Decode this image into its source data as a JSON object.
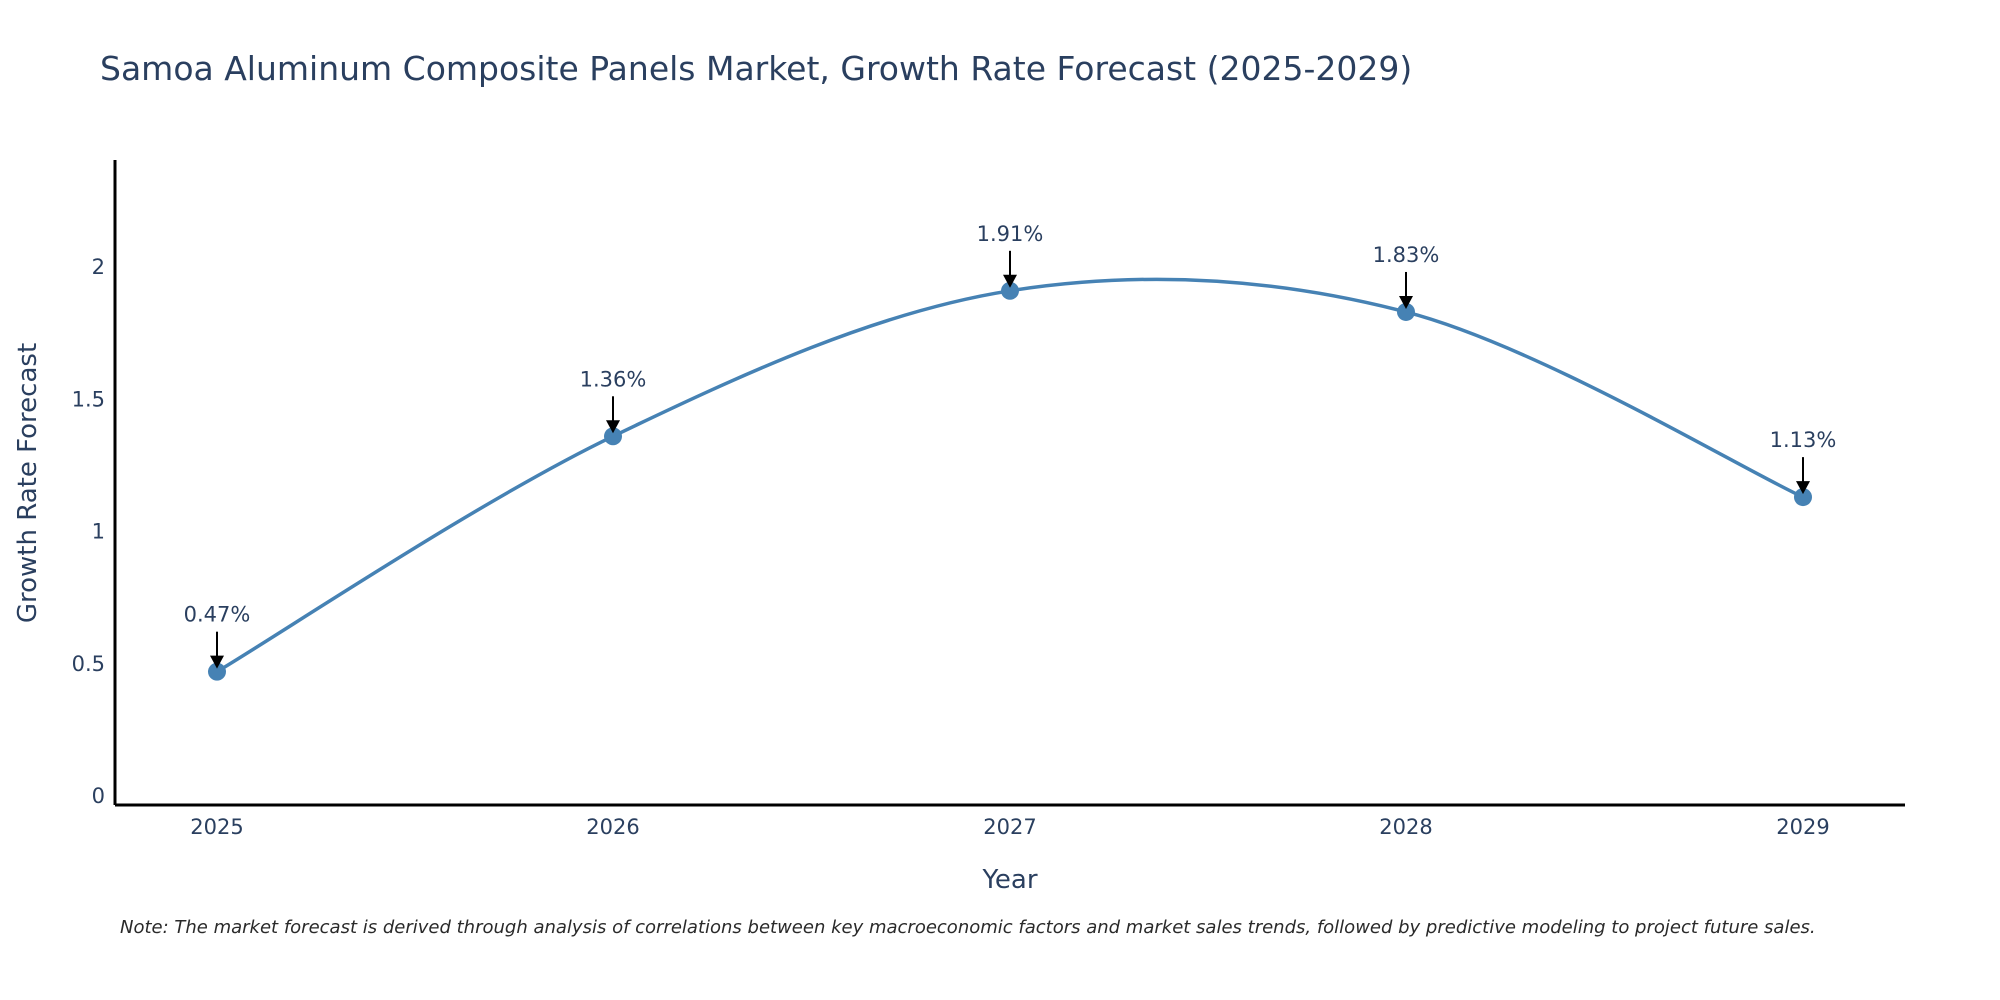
{
  "chart_data": {
    "type": "line",
    "title": "Samoa Aluminum Composite Panels Market, Growth Rate Forecast (2025-2029)",
    "xlabel": "Year",
    "ylabel": "Growth Rate Forecast",
    "x": [
      "2025",
      "2026",
      "2027",
      "2028",
      "2029"
    ],
    "series": [
      {
        "name": "Growth Rate Forecast",
        "values": [
          0.47,
          1.36,
          1.91,
          1.83,
          1.13
        ],
        "color": "#4682b4"
      }
    ],
    "annotations": [
      "0.47%",
      "1.36%",
      "1.91%",
      "1.83%",
      "1.13%"
    ],
    "y_ticks": [
      "0",
      "0.5",
      "1",
      "1.5",
      "2"
    ],
    "ylim": [
      0,
      2.4
    ],
    "grid": false,
    "line_shape": "spline"
  },
  "note": "Note: The market forecast is derived through analysis of correlations between key macroeconomic factors and market sales trends, followed by predictive modeling to project future sales."
}
